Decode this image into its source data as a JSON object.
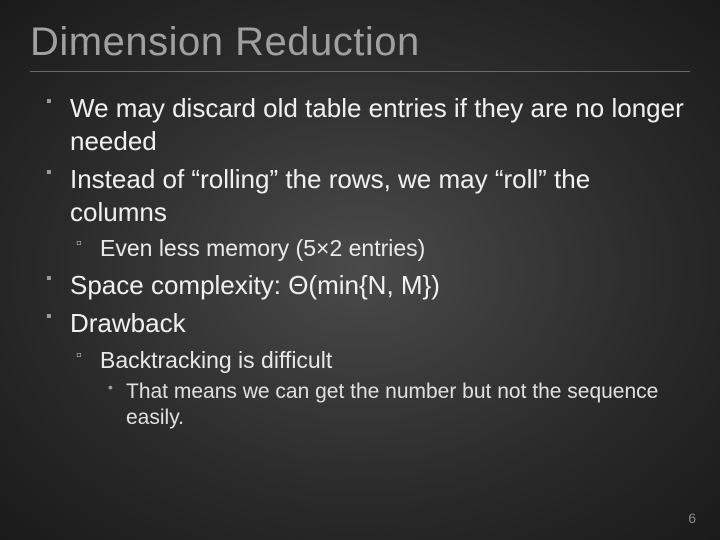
{
  "slide": {
    "title": "Dimension Reduction",
    "background": {
      "type": "radial-gradient",
      "center_color": "#4a4a4a",
      "mid_color": "#2a2a2a",
      "outer_color": "#1a1a1a"
    },
    "title_style": {
      "fontsize": 40,
      "color": "#a0a0a0",
      "weight": 400
    },
    "divider_color": "#6a6a6a",
    "bullets": {
      "level1": [
        {
          "text": "We may discard old table entries if they are no longer needed"
        },
        {
          "text": "Instead of “rolling” the rows, we may “roll” the columns",
          "children": [
            {
              "text": "Even less memory (5×2 entries)"
            }
          ]
        },
        {
          "text": "Space complexity: Θ(min{N, M})"
        },
        {
          "text": "Drawback",
          "children": [
            {
              "text": "Backtracking is difficult",
              "children": [
                {
                  "text": "That means we can get the number but not the sequence easily."
                }
              ]
            }
          ]
        }
      ],
      "level1_style": {
        "fontsize": 26,
        "color": "#f0f0f0",
        "marker": "▪",
        "marker_color": "#9a9a9a"
      },
      "level2_style": {
        "fontsize": 23,
        "color": "#e8e8e8",
        "marker": "▫",
        "marker_color": "#b0b0b0"
      },
      "level3_style": {
        "fontsize": 21,
        "color": "#e0e0e0",
        "marker": "•",
        "marker_color": "#a0a0a0"
      }
    },
    "page_number": "6",
    "page_number_style": {
      "fontsize": 14,
      "color": "#8a8a8a"
    }
  }
}
